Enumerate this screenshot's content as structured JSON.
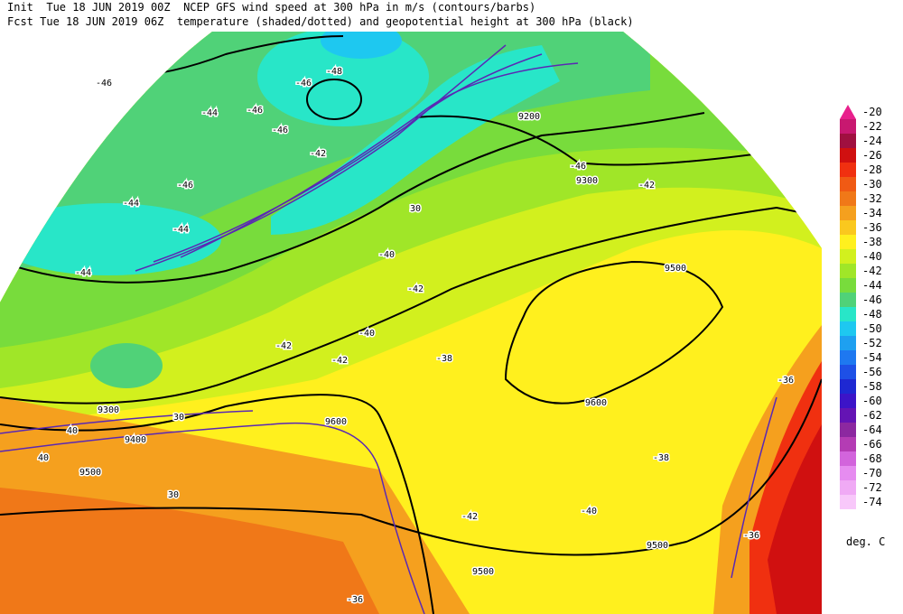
{
  "header": {
    "line1": "Init  Tue 18 JUN 2019 00Z  NCEP GFS wind speed at 300 hPa in m/s (contours/barbs)",
    "line2": "Fcst Tue 18 JUN 2019 06Z  temperature (shaded/dotted) and geopotential height at 300 hPa (black)"
  },
  "colorbar": {
    "levels": [
      -20,
      -22,
      -24,
      -26,
      -28,
      -30,
      -32,
      -34,
      -36,
      -38,
      -40,
      -42,
      -44,
      -46,
      -48,
      -50,
      -52,
      -54,
      -56,
      -58,
      -60,
      -62,
      -64,
      -66,
      -68,
      -70,
      -72,
      -74
    ],
    "colors": [
      "#e8208c",
      "#c81870",
      "#a01040",
      "#d01010",
      "#f03010",
      "#f05a14",
      "#f07818",
      "#f5a01e",
      "#fac81e",
      "#fff01e",
      "#d2f01e",
      "#a0e628",
      "#78dc3c",
      "#50d278",
      "#28e6c8",
      "#1ec8f0",
      "#1ea0f0",
      "#1e78f0",
      "#1e50e6",
      "#1e28d2",
      "#3c14c8",
      "#6414b4",
      "#8c28a0",
      "#b43cb4",
      "#d264dc",
      "#e68cf0",
      "#f0aaf5",
      "#f8c8fa"
    ],
    "unit": "deg. C"
  },
  "map": {
    "labels": [
      "-46",
      "-46",
      "-44",
      "-46",
      "-42",
      "9200",
      "-46",
      "9300",
      "-42",
      "-44",
      "-46",
      "-44",
      "-44",
      "-42",
      "9500",
      "-42",
      "-40",
      "-42",
      "-38",
      "9300",
      "9400",
      "9500",
      "9500",
      "9600",
      "9600",
      "9500",
      "-38",
      "-40",
      "-36",
      "-42",
      "30",
      "30",
      "30",
      "40",
      "40",
      "-36",
      "-36",
      "-48",
      "-46",
      "-40"
    ]
  }
}
